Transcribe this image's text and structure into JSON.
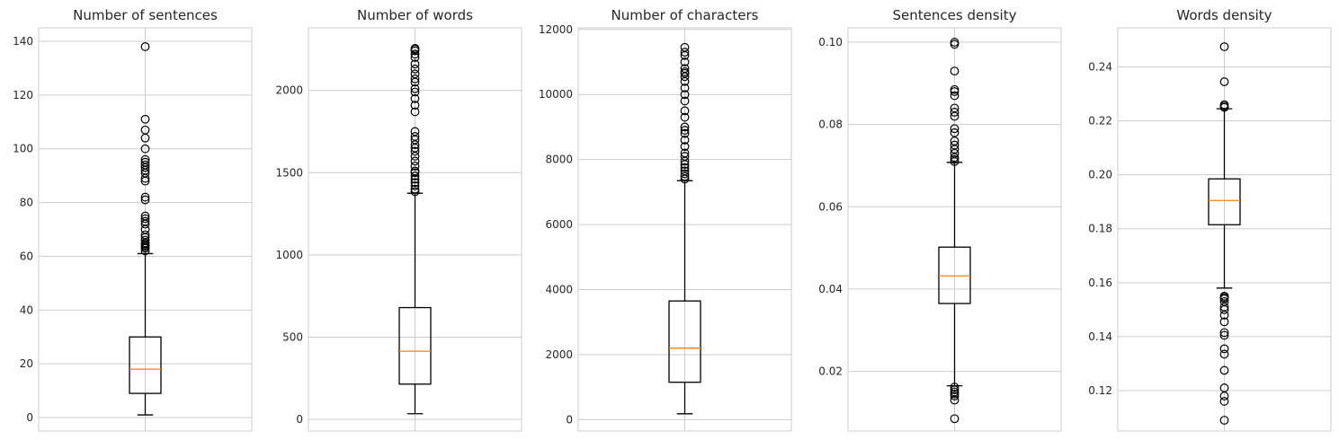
{
  "chart_data": [
    {
      "type": "boxplot",
      "title": "Number of sentences",
      "xlabel": "",
      "ylabel": "",
      "ylim": [
        -5,
        145
      ],
      "yticks": [
        0,
        20,
        40,
        60,
        80,
        100,
        120,
        140
      ],
      "grid": true,
      "box": {
        "whisker_low": 1,
        "q1": 9,
        "median": 18,
        "q3": 30,
        "whisker_high": 61,
        "outliers": [
          62,
          63,
          63.5,
          64,
          64.5,
          65,
          66,
          67,
          68,
          70,
          72,
          73,
          74,
          75,
          81,
          82,
          88,
          89,
          91,
          92,
          93,
          94,
          95,
          96,
          100,
          104,
          107,
          111,
          138
        ]
      }
    },
    {
      "type": "boxplot",
      "title": "Number of words",
      "xlabel": "",
      "ylabel": "",
      "ylim": [
        -70,
        2380
      ],
      "yticks": [
        0,
        500,
        1000,
        1500,
        2000
      ],
      "grid": true,
      "box": {
        "whisker_low": 35,
        "q1": 215,
        "median": 415,
        "q3": 680,
        "whisker_high": 1375,
        "outliers": [
          1385,
          1400,
          1420,
          1440,
          1460,
          1480,
          1500,
          1510,
          1540,
          1570,
          1600,
          1630,
          1650,
          1670,
          1700,
          1720,
          1750,
          1870,
          1910,
          1950,
          1990,
          2010,
          2050,
          2070,
          2100,
          2130,
          2160,
          2200,
          2220,
          2240,
          2250,
          2255
        ]
      }
    },
    {
      "type": "boxplot",
      "title": "Number of characters",
      "xlabel": "",
      "ylabel": "",
      "ylim": [
        -350,
        12050
      ],
      "yticks": [
        0,
        2000,
        4000,
        6000,
        8000,
        10000,
        12000
      ],
      "grid": true,
      "box": {
        "whisker_low": 180,
        "q1": 1150,
        "median": 2200,
        "q3": 3650,
        "whisker_high": 7350,
        "outliers": [
          7400,
          7480,
          7560,
          7650,
          7750,
          7850,
          7950,
          8100,
          8200,
          8400,
          8600,
          8800,
          8900,
          9000,
          9300,
          9500,
          9800,
          10000,
          10200,
          10400,
          10550,
          10650,
          10700,
          10800,
          11000,
          11200,
          11300,
          11450
        ]
      }
    },
    {
      "type": "boxplot",
      "title": "Sentences density",
      "xlabel": "",
      "ylabel": "",
      "ylim": [
        0.0055,
        0.1035
      ],
      "yticks": [
        0.02,
        0.04,
        0.06,
        0.08,
        0.1
      ],
      "ytick_labels": [
        "0.02",
        "0.04",
        "0.06",
        "0.08",
        "0.10"
      ],
      "grid": true,
      "box": {
        "whisker_low": 0.0165,
        "q1": 0.0365,
        "median": 0.0432,
        "q3": 0.0502,
        "whisker_high": 0.0708,
        "outliers": [
          0.0085,
          0.013,
          0.014,
          0.0145,
          0.015,
          0.0155,
          0.0162,
          0.071,
          0.0715,
          0.072,
          0.073,
          0.074,
          0.075,
          0.076,
          0.078,
          0.079,
          0.082,
          0.083,
          0.084,
          0.087,
          0.088,
          0.0885,
          0.093,
          0.0995,
          0.1
        ]
      }
    },
    {
      "type": "boxplot",
      "title": "Words density",
      "xlabel": "",
      "ylabel": "",
      "ylim": [
        0.105,
        0.2545
      ],
      "yticks": [
        0.12,
        0.14,
        0.16,
        0.18,
        0.2,
        0.22,
        0.24
      ],
      "ytick_labels": [
        "0.12",
        "0.14",
        "0.16",
        "0.18",
        "0.20",
        "0.22",
        "0.24"
      ],
      "grid": true,
      "box": {
        "whisker_low": 0.158,
        "q1": 0.1815,
        "median": 0.1905,
        "q3": 0.1985,
        "whisker_high": 0.2245,
        "outliers": [
          0.109,
          0.116,
          0.118,
          0.121,
          0.1275,
          0.1335,
          0.1355,
          0.1405,
          0.1415,
          0.1455,
          0.148,
          0.15,
          0.151,
          0.153,
          0.154,
          0.1545,
          0.155,
          0.225,
          0.2255,
          0.226,
          0.2345,
          0.2475
        ]
      }
    }
  ],
  "colors": {
    "box": "#000000",
    "median": "#ff7f0e",
    "grid": "#cccccc",
    "frame": "#cccccc",
    "text": "#262626"
  }
}
